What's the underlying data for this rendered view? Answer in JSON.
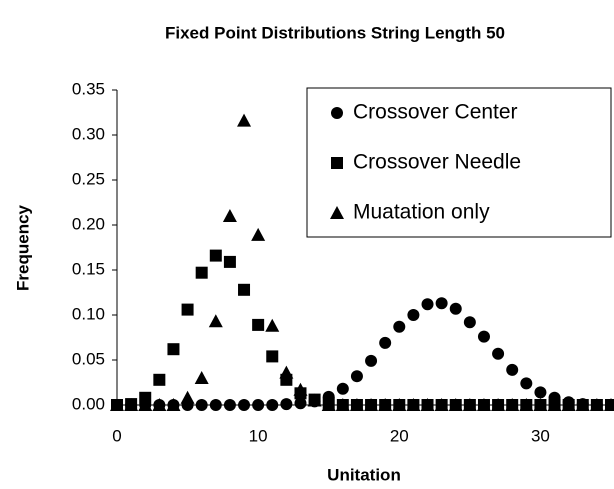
{
  "chart_data": {
    "type": "scatter",
    "title": "Fixed Point Distributions String Length 50",
    "x_label": "Unitation",
    "y_label": "Frequency",
    "x": [
      0,
      1,
      2,
      3,
      4,
      5,
      6,
      7,
      8,
      9,
      10,
      11,
      12,
      13,
      14,
      15,
      16,
      17,
      18,
      19,
      20,
      21,
      22,
      23,
      24,
      25,
      26,
      27,
      28,
      29,
      30,
      31,
      32,
      33,
      34,
      35
    ],
    "series": [
      {
        "name": "Crossover Center",
        "color": "#000000",
        "marker": "circle",
        "values": [
          0,
          0,
          0,
          0,
          0,
          0,
          0,
          0,
          0,
          0,
          0,
          0,
          0.001,
          0.002,
          0.004,
          0.009,
          0.018,
          0.032,
          0.049,
          0.069,
          0.087,
          0.1,
          0.112,
          0.113,
          0.107,
          0.092,
          0.076,
          0.057,
          0.039,
          0.024,
          0.014,
          0.008,
          0.003,
          0.001,
          0,
          0
        ]
      },
      {
        "name": "Crossover Needle",
        "color": "#000000",
        "marker": "square",
        "values": [
          0,
          0.001,
          0.008,
          0.028,
          0.062,
          0.106,
          0.147,
          0.166,
          0.159,
          0.128,
          0.089,
          0.054,
          0.028,
          0.013,
          0.006,
          0.002,
          0,
          0,
          0,
          0,
          0,
          0,
          0,
          0,
          0,
          0,
          0,
          0,
          0,
          0,
          0,
          0,
          0,
          0,
          0,
          0
        ]
      },
      {
        "name": "Muatation only",
        "color": "#000000",
        "marker": "triangle",
        "values": [
          0,
          0,
          0,
          0,
          0,
          0.008,
          0.03,
          0.093,
          0.21,
          0.316,
          0.189,
          0.088,
          0.036,
          0.017,
          0.005,
          0,
          0,
          0,
          0,
          0,
          0,
          0,
          0,
          0,
          0,
          0,
          0,
          0,
          0,
          0,
          0,
          0,
          0,
          0,
          0,
          0
        ]
      }
    ],
    "xlim": [
      0,
      35
    ],
    "xticks": [
      0,
      10,
      20,
      30
    ],
    "ylim": [
      0,
      0.35
    ],
    "yticks": [
      {
        "value": 0,
        "label": "0.00"
      },
      {
        "value": 0.05,
        "label": "0.05"
      },
      {
        "value": 0.1,
        "label": "0.10"
      },
      {
        "value": 0.15,
        "label": "0.15"
      },
      {
        "value": 0.2,
        "label": "0.20"
      },
      {
        "value": 0.25,
        "label": "0.25"
      },
      {
        "value": 0.3,
        "label": "0.30"
      },
      {
        "value": 0.35,
        "label": "0.35"
      }
    ],
    "grid": false,
    "legend": "top-right"
  }
}
